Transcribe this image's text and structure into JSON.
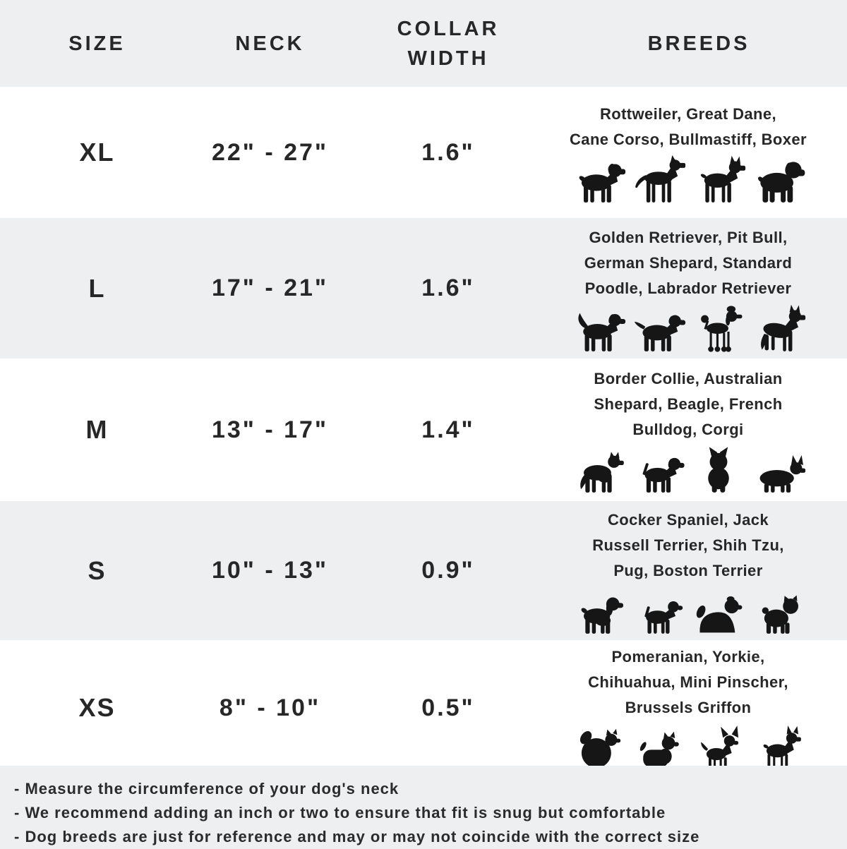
{
  "table": {
    "headers": [
      {
        "label": "SIZE"
      },
      {
        "label": "NECK"
      },
      {
        "label": "COLLAR WIDTH"
      },
      {
        "label": "BREEDS"
      }
    ],
    "rows": [
      {
        "size": "XL",
        "neck": "22\" - 27\"",
        "collar_width": "1.6\"",
        "breeds": "Rottweiler, Great Dane, Cane Corso, Bullmastiff, Boxer",
        "breed_lines": [
          "Rottweiler, Great Dane,",
          "Cane Corso, Bullmastiff, Boxer"
        ],
        "icons": [
          "rottweiler-icon",
          "great-dane-icon",
          "cane-corso-icon",
          "bullmastiff-icon"
        ]
      },
      {
        "size": "L",
        "neck": "17\" - 21\"",
        "collar_width": "1.6\"",
        "breeds": "Golden Retriever, Pit Bull, German Shepard, Standard Poodle, Labrador Retriever",
        "breed_lines": [
          "Golden Retriever, Pit Bull,",
          "German Shepard, Standard",
          "Poodle, Labrador Retriever"
        ],
        "icons": [
          "golden-retriever-icon",
          "labrador-icon",
          "poodle-icon",
          "german-shepherd-icon"
        ]
      },
      {
        "size": "M",
        "neck": "13\" - 17\"",
        "collar_width": "1.4\"",
        "breeds": "Border Collie, Australian Shepard, Beagle, French Bulldog, Corgi",
        "breed_lines": [
          "Border Collie, Australian",
          "Shepard, Beagle, French",
          "Bulldog, Corgi"
        ],
        "icons": [
          "border-collie-icon",
          "beagle-icon",
          "french-bulldog-icon",
          "corgi-icon"
        ]
      },
      {
        "size": "S",
        "neck": "10\" - 13\"",
        "collar_width": "0.9\"",
        "breeds": "Cocker Spaniel, Jack Russell Terrier, Shih Tzu, Pug, Boston Terrier",
        "breed_lines": [
          "Cocker Spaniel, Jack",
          "Russell Terrier, Shih Tzu,",
          "Pug, Boston Terrier"
        ],
        "icons": [
          "cocker-spaniel-icon",
          "jack-russell-icon",
          "shih-tzu-icon",
          "pug-icon"
        ]
      },
      {
        "size": "XS",
        "neck": "8\" - 10\"",
        "collar_width": "0.5\"",
        "breeds": "Pomeranian, Yorkie, Chihuahua, Mini Pinscher, Brussels Griffon",
        "breed_lines": [
          "Pomeranian, Yorkie,",
          "Chihuahua, Mini Pinscher,",
          "Brussels Griffon"
        ],
        "icons": [
          "pomeranian-icon",
          "yorkie-icon",
          "chihuahua-icon",
          "min-pin-icon"
        ]
      }
    ]
  },
  "notes": [
    "- Measure the circumference of your dog's neck",
    "- We recommend adding an inch or two to ensure that fit is snug but comfortable",
    "- Dog breeds are just for reference and may or may not coincide with the correct size"
  ],
  "colors": {
    "alt_row_bg": "#edeff1",
    "row_bg": "#ffffff",
    "text": "#272727",
    "silhouette": "#161616"
  },
  "chart_data": {
    "type": "table",
    "columns": [
      "SIZE",
      "NECK",
      "COLLAR WIDTH",
      "BREEDS"
    ],
    "rows": [
      [
        "XL",
        "22\" - 27\"",
        "1.6\"",
        "Rottweiler, Great Dane, Cane Corso, Bullmastiff, Boxer"
      ],
      [
        "L",
        "17\" - 21\"",
        "1.6\"",
        "Golden Retriever, Pit Bull, German Shepard, Standard Poodle, Labrador Retriever"
      ],
      [
        "M",
        "13\" - 17\"",
        "1.4\"",
        "Border Collie, Australian Shepard, Beagle, French Bulldog, Corgi"
      ],
      [
        "S",
        "10\" - 13\"",
        "0.9\"",
        "Cocker Spaniel, Jack Russell Terrier, Shih Tzu, Pug, Boston Terrier"
      ],
      [
        "XS",
        "8\" - 10\"",
        "0.5\"",
        "Pomeranian, Yorkie, Chihuahua, Mini Pinscher, Brussels Griffon"
      ]
    ],
    "notes": [
      "- Measure the circumference of your dog's neck",
      "- We recommend adding an inch or two to ensure that fit is snug but comfortable",
      "- Dog breeds are just for reference and may or may not coincide with the correct size"
    ],
    "legend_position": "none",
    "grid": false
  }
}
